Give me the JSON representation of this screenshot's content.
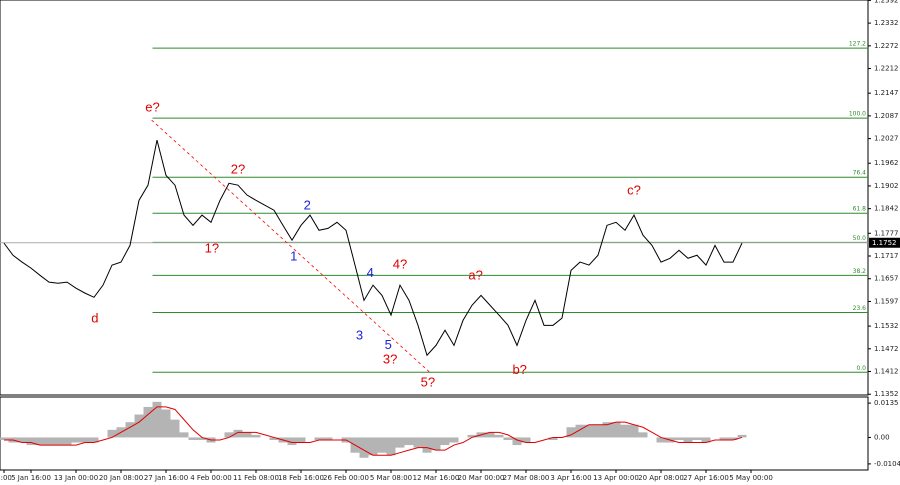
{
  "chart_data": [
    {
      "type": "line",
      "categories": [
        "8:00",
        null,
        null,
        "5 Jan 16:00",
        null,
        null,
        null,
        null,
        "13 Jan 00:00",
        null,
        null,
        null,
        null,
        "20 Jan 08:00",
        null,
        null,
        null,
        null,
        "27 Jan 16:00",
        null,
        null,
        null,
        null,
        "4 Feb 00:00",
        null,
        null,
        null,
        null,
        "11 Feb 08:00",
        null,
        null,
        null,
        null,
        "18 Feb 16:00",
        null,
        null,
        null,
        null,
        "26 Feb 00:00",
        null,
        null,
        null,
        null,
        "5 Mar 08:00",
        null,
        null,
        null,
        null,
        "12 Mar 16:00",
        null,
        null,
        null,
        null,
        "20 Mar 00:00",
        null,
        null,
        null,
        null,
        "27 Mar 08:00",
        null,
        null,
        null,
        null,
        "3 Apr 16:00",
        null,
        null,
        null,
        null,
        "13 Apr 00:00",
        null,
        null,
        null,
        null,
        "20 Apr 08:00",
        null,
        null,
        null,
        null,
        "27 Apr 16:00",
        null,
        null,
        null,
        null,
        "5 May 00:00"
      ],
      "series": [
        {
          "color": "#000000",
          "values": [
            1.1751,
            1.1719,
            1.1701,
            1.1685,
            1.1666,
            1.1648,
            1.1645,
            1.1648,
            1.1632,
            1.1619,
            1.1608,
            1.164,
            1.1693,
            1.1701,
            1.1745,
            1.1864,
            1.1904,
            1.2023,
            1.193,
            1.1904,
            1.1825,
            1.1798,
            1.1825,
            1.1806,
            1.1864,
            1.1909,
            1.1904,
            1.1878,
            1.1864,
            1.1851,
            1.1838,
            1.1798,
            1.1759,
            1.1798,
            1.1825,
            1.1785,
            1.179,
            1.1806,
            1.1785,
            1.1693,
            1.16,
            1.164,
            1.1613,
            1.1561,
            1.164,
            1.16,
            1.1534,
            1.1455,
            1.1481,
            1.1521,
            1.1481,
            1.1547,
            1.1587,
            1.1613,
            1.1587,
            1.1561,
            1.1534,
            1.1481,
            1.1547,
            1.16,
            1.1534,
            1.1534,
            1.1553,
            1.1679,
            1.1701,
            1.1693,
            1.1719,
            1.1798,
            1.1806,
            1.1785,
            1.1825,
            1.1772,
            1.1745,
            1.1701,
            1.1711,
            1.1732,
            1.1711,
            1.1719,
            1.1693,
            1.1745,
            1.1701,
            1.1701,
            1.1751,
            null
          ]
        }
      ],
      "ylim": [
        1.135,
        1.2393
      ],
      "yticks": [
        1.2392,
        1.2332,
        1.2272,
        1.2212,
        1.2147,
        1.2087,
        1.2027,
        1.1962,
        1.1902,
        1.1842,
        1.1777,
        1.1717,
        1.1657,
        1.1597,
        1.1532,
        1.1472,
        1.1412,
        1.1352
      ],
      "current_price": 1.1752,
      "fib_color": "#2e8b2e",
      "fib_start": 16.5,
      "fib_levels": [
        {
          "value": 1.2266,
          "label": "127.2"
        },
        {
          "value": 1.2081,
          "label": "100.0"
        },
        {
          "value": 1.1925,
          "label": "76.4"
        },
        {
          "value": 1.183,
          "label": "61.8"
        },
        {
          "value": 1.1753,
          "label": "50.0"
        },
        {
          "value": 1.1666,
          "label": "38.2"
        },
        {
          "value": 1.1568,
          "label": "23.6"
        },
        {
          "value": 1.141,
          "label": "0.0"
        }
      ],
      "trendline": {
        "from": [
          16.4,
          1.2076
        ],
        "to": [
          47.3,
          1.141
        ],
        "color": "#ff0000"
      },
      "annotations": [
        {
          "text": "e?",
          "color": "#e00000",
          "x": 16.5,
          "y": 1.2108
        },
        {
          "text": "d",
          "color": "#e00000",
          "x": 10.1,
          "y": 1.155
        },
        {
          "text": "1?",
          "color": "#e00000",
          "x": 23.1,
          "y": 1.1735
        },
        {
          "text": "2?",
          "color": "#e00000",
          "x": 26,
          "y": 1.1944
        },
        {
          "text": "1",
          "color": "#2020e0",
          "x": 32.2,
          "y": 1.1714
        },
        {
          "text": "2",
          "color": "#2020e0",
          "x": 33.7,
          "y": 1.1849
        },
        {
          "text": "3",
          "color": "#2020e0",
          "x": 39.5,
          "y": 1.1505
        },
        {
          "text": "4",
          "color": "#2020e0",
          "x": 40.7,
          "y": 1.1671
        },
        {
          "text": "5",
          "color": "#2020e0",
          "x": 42.7,
          "y": 1.1481
        },
        {
          "text": "4?",
          "color": "#e00000",
          "x": 44,
          "y": 1.1693
        },
        {
          "text": "3?",
          "color": "#e00000",
          "x": 42.9,
          "y": 1.1442
        },
        {
          "text": "5?",
          "color": "#e00000",
          "x": 47.1,
          "y": 1.1381
        },
        {
          "text": "a?",
          "color": "#e00000",
          "x": 52.4,
          "y": 1.1664
        },
        {
          "text": "b?",
          "color": "#e00000",
          "x": 57.3,
          "y": 1.1415
        },
        {
          "text": "c?",
          "color": "#e00000",
          "x": 70,
          "y": 1.1888
        }
      ]
    },
    {
      "type": "bar",
      "color": "#b4b4b4",
      "values": [
        -0.001,
        -0.002,
        -0.002,
        -0.003,
        -0.003,
        -0.003,
        -0.003,
        -0.003,
        -0.002,
        -0.002,
        -0.002,
        0.0,
        0.003,
        0.004,
        0.006,
        0.009,
        0.012,
        0.014,
        0.011,
        0.007,
        0.002,
        -0.001,
        -0.001,
        -0.002,
        0.0,
        0.002,
        0.003,
        0.002,
        0.001,
        0.0,
        -0.001,
        -0.002,
        -0.003,
        -0.002,
        0.0,
        -0.001,
        -0.001,
        0.0,
        -0.002,
        -0.006,
        -0.008,
        -0.007,
        -0.006,
        -0.007,
        -0.004,
        -0.003,
        -0.004,
        -0.006,
        -0.005,
        -0.003,
        -0.002,
        0.0,
        0.001,
        0.002,
        0.002,
        0.001,
        -0.001,
        -0.003,
        -0.002,
        0.0,
        0.0,
        -0.001,
        0.0,
        0.004,
        0.005,
        0.005,
        0.005,
        0.006,
        0.006,
        0.005,
        0.005,
        0.002,
        0.0,
        -0.002,
        -0.002,
        -0.001,
        -0.002,
        -0.001,
        -0.002,
        0.0,
        -0.001,
        -0.001,
        0.001,
        null
      ],
      "line_color": "#e00000",
      "line_values": [
        -0.001,
        -0.001,
        -0.002,
        -0.002,
        -0.003,
        -0.003,
        -0.003,
        -0.003,
        -0.003,
        -0.002,
        -0.002,
        -0.001,
        0.0,
        0.002,
        0.004,
        0.006,
        0.009,
        0.012,
        0.012,
        0.011,
        0.007,
        0.003,
        0.0,
        -0.001,
        -0.001,
        0.0,
        0.002,
        0.002,
        0.002,
        0.001,
        0.0,
        -0.001,
        -0.002,
        -0.002,
        -0.002,
        -0.001,
        -0.001,
        -0.001,
        -0.001,
        -0.003,
        -0.005,
        -0.007,
        -0.007,
        -0.007,
        -0.006,
        -0.005,
        -0.004,
        -0.004,
        -0.005,
        -0.005,
        -0.003,
        -0.002,
        0.0,
        0.001,
        0.002,
        0.002,
        0.001,
        -0.001,
        -0.002,
        -0.002,
        -0.001,
        0.0,
        0.0,
        0.001,
        0.003,
        0.005,
        0.005,
        0.005,
        0.006,
        0.006,
        0.005,
        0.004,
        0.002,
        0.0,
        -0.001,
        -0.002,
        -0.002,
        -0.002,
        -0.002,
        -0.001,
        -0.001,
        -0.001,
        0.0,
        null
      ],
      "ylim": [
        -0.0128,
        0.0159
      ],
      "yticks": [
        0.0135,
        {
          "value": 0,
          "label": "0.00"
        },
        -0.0104
      ]
    }
  ]
}
